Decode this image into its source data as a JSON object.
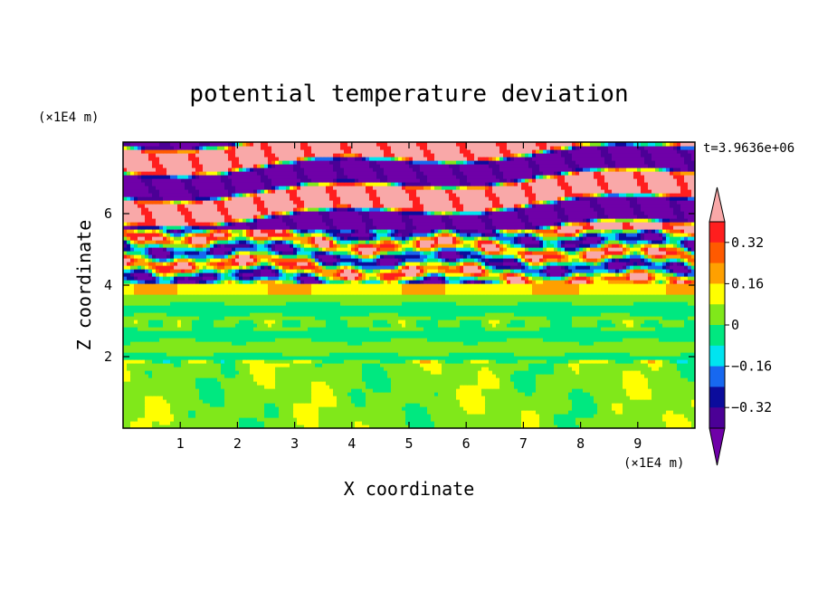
{
  "chart_data": {
    "type": "heatmap",
    "title": "potential temperature deviation",
    "xlabel": "X coordinate",
    "ylabel": "Z coordinate",
    "x_unit": "(×1E4 m)",
    "y_unit": "(×1E4 m)",
    "time_label": "t=3.9636e+06",
    "xlim": [
      0,
      10
    ],
    "ylim": [
      0,
      8
    ],
    "x_ticks": [
      1,
      2,
      3,
      4,
      5,
      6,
      7,
      8,
      9
    ],
    "y_ticks": [
      2,
      4,
      6
    ],
    "colorbar": {
      "levels": [
        -0.4,
        -0.32,
        -0.24,
        -0.16,
        -0.08,
        0,
        0.08,
        0.16,
        0.24,
        0.32,
        0.4
      ],
      "tick_labels": [
        "0.32",
        "0.16",
        "0",
        "−0.16",
        "−0.32"
      ],
      "tick_values": [
        0.32,
        0.16,
        0,
        -0.16,
        -0.32
      ],
      "colors": [
        "#6f00a8",
        "#4b0096",
        "#0b0c9c",
        "#1768f0",
        "#00e4f0",
        "#00e880",
        "#80e81a",
        "#ffff00",
        "#ffa000",
        "#ff5a00",
        "#ff1e1e",
        "#f9a8a8"
      ]
    }
  }
}
